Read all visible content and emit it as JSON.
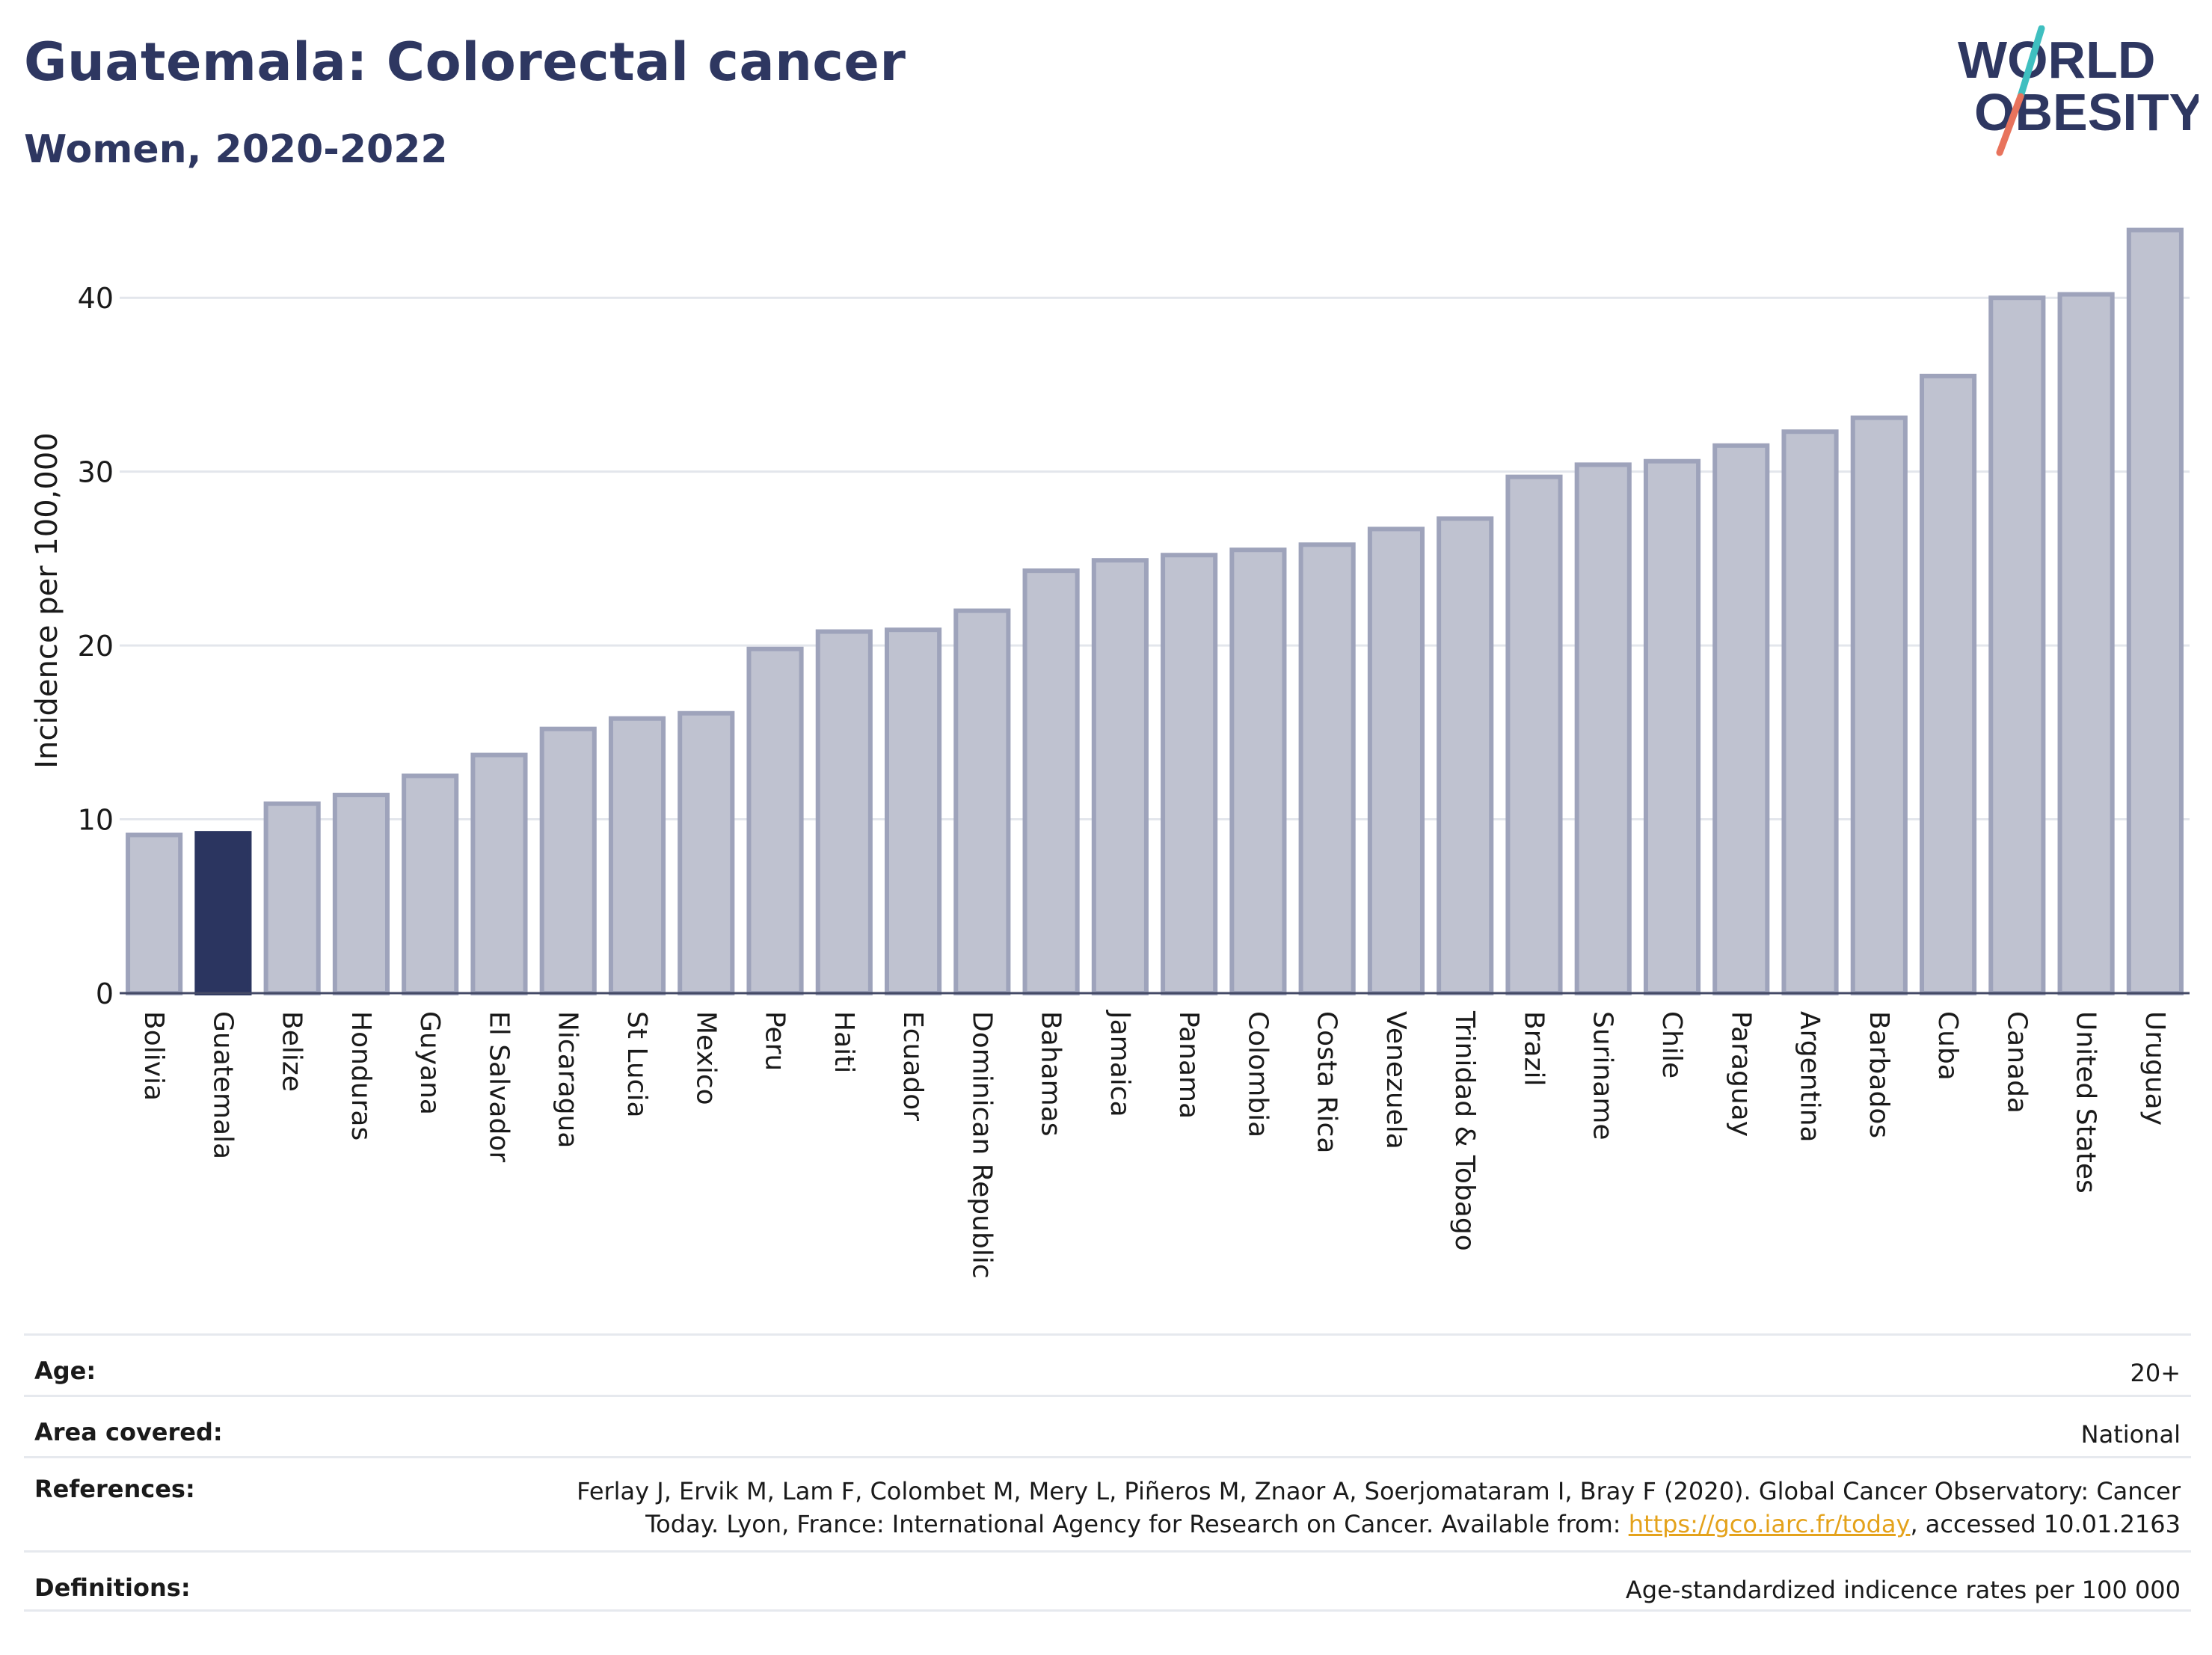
{
  "header": {
    "title": "Guatemala: Colorectal cancer",
    "subtitle": "Women, 2020-2022"
  },
  "logo": {
    "line1": "WORLD",
    "line2": "OBESITY"
  },
  "colors": {
    "highlight": "#2b3560",
    "bar_fill": "#bfc2d0",
    "bar_stroke": "#9ea3bb",
    "title": "#2e3761",
    "link": "#e4a21b",
    "logo_teal": "#3fbfc0",
    "logo_coral": "#e8735c"
  },
  "chart_data": {
    "type": "bar",
    "title": "Guatemala: Colorectal cancer",
    "subtitle": "Women, 2020-2022",
    "xlabel": "",
    "ylabel": "Incidence per 100,000",
    "ylim": [
      0,
      45
    ],
    "yticks": [
      0,
      10,
      20,
      30,
      40
    ],
    "grid": true,
    "highlight": "Guatemala",
    "categories": [
      "Bolivia",
      "Guatemala",
      "Belize",
      "Honduras",
      "Guyana",
      "El Salvador",
      "Nicaragua",
      "St Lucia",
      "Mexico",
      "Peru",
      "Haiti",
      "Ecuador",
      "Dominican Republic",
      "Bahamas",
      "Jamaica",
      "Panama",
      "Colombia",
      "Costa Rica",
      "Venezuela",
      "Trinidad & Tobago",
      "Brazil",
      "Suriname",
      "Chile",
      "Paraguay",
      "Argentina",
      "Barbados",
      "Cuba",
      "Canada",
      "United States",
      "Uruguay"
    ],
    "values": [
      9.1,
      9.2,
      10.9,
      11.4,
      12.5,
      13.7,
      15.2,
      15.8,
      16.1,
      19.8,
      20.8,
      20.9,
      22.0,
      24.3,
      24.9,
      25.2,
      25.5,
      25.8,
      26.7,
      27.3,
      29.7,
      30.4,
      30.6,
      31.5,
      32.3,
      33.1,
      35.5,
      40.0,
      40.2,
      43.9
    ]
  },
  "footer": {
    "age_label": "Age:",
    "age_value": "20+",
    "area_label": "Area covered:",
    "area_value": "National",
    "references_label": "References:",
    "references_line1": "Ferlay J, Ervik M, Lam F, Colombet M, Mery L, Piñeros M, Znaor A, Soerjomataram I, Bray F (2020). Global Cancer Observatory: Cancer",
    "references_line2_pre": "Today. Lyon, France: International Agency for Research on Cancer. Available from: ",
    "references_link": "https://gco.iarc.fr/today",
    "references_line2_post": ", accessed 10.01.2163",
    "definitions_label": "Definitions:",
    "definitions_value": "Age-standardized indicence rates per 100 000"
  }
}
